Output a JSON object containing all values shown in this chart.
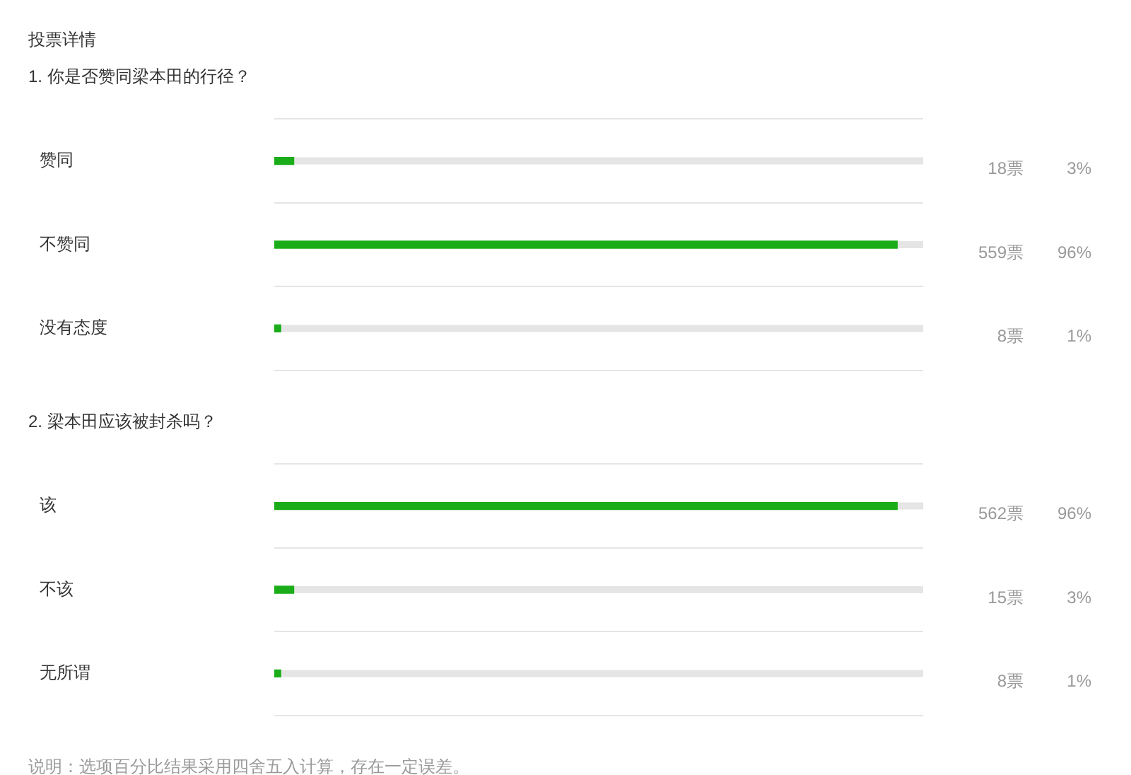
{
  "chart_data": [
    {
      "type": "bar",
      "orientation": "horizontal",
      "title": "投票详情",
      "subtitle": "1. 你是否赞同梁本田的行径？",
      "categories": [
        "赞同",
        "不赞同",
        "没有态度"
      ],
      "values": [
        3,
        96,
        1
      ],
      "color": "#1aad19",
      "xlim": [
        0,
        100
      ],
      "grid": "y",
      "tick_labels": "y",
      "value_labels": [
        "3%",
        "96%",
        "1%"
      ],
      "annotations": [
        "18票",
        "559票",
        "8票"
      ]
    },
    {
      "type": "bar",
      "orientation": "horizontal",
      "subtitle": "2. 梁本田应该被封杀吗？",
      "categories": [
        "该",
        "不该",
        "无所谓"
      ],
      "values": [
        96,
        3,
        1
      ],
      "color": "#1aad19",
      "xlim": [
        0,
        100
      ],
      "grid": "y",
      "tick_labels": "y",
      "value_labels": [
        "96%",
        "3%",
        "1%"
      ],
      "annotations": [
        "562票",
        "15票",
        "8票",
        "说明：选项百分比结果采用四舍五入计算，存在一定误差。"
      ]
    }
  ]
}
